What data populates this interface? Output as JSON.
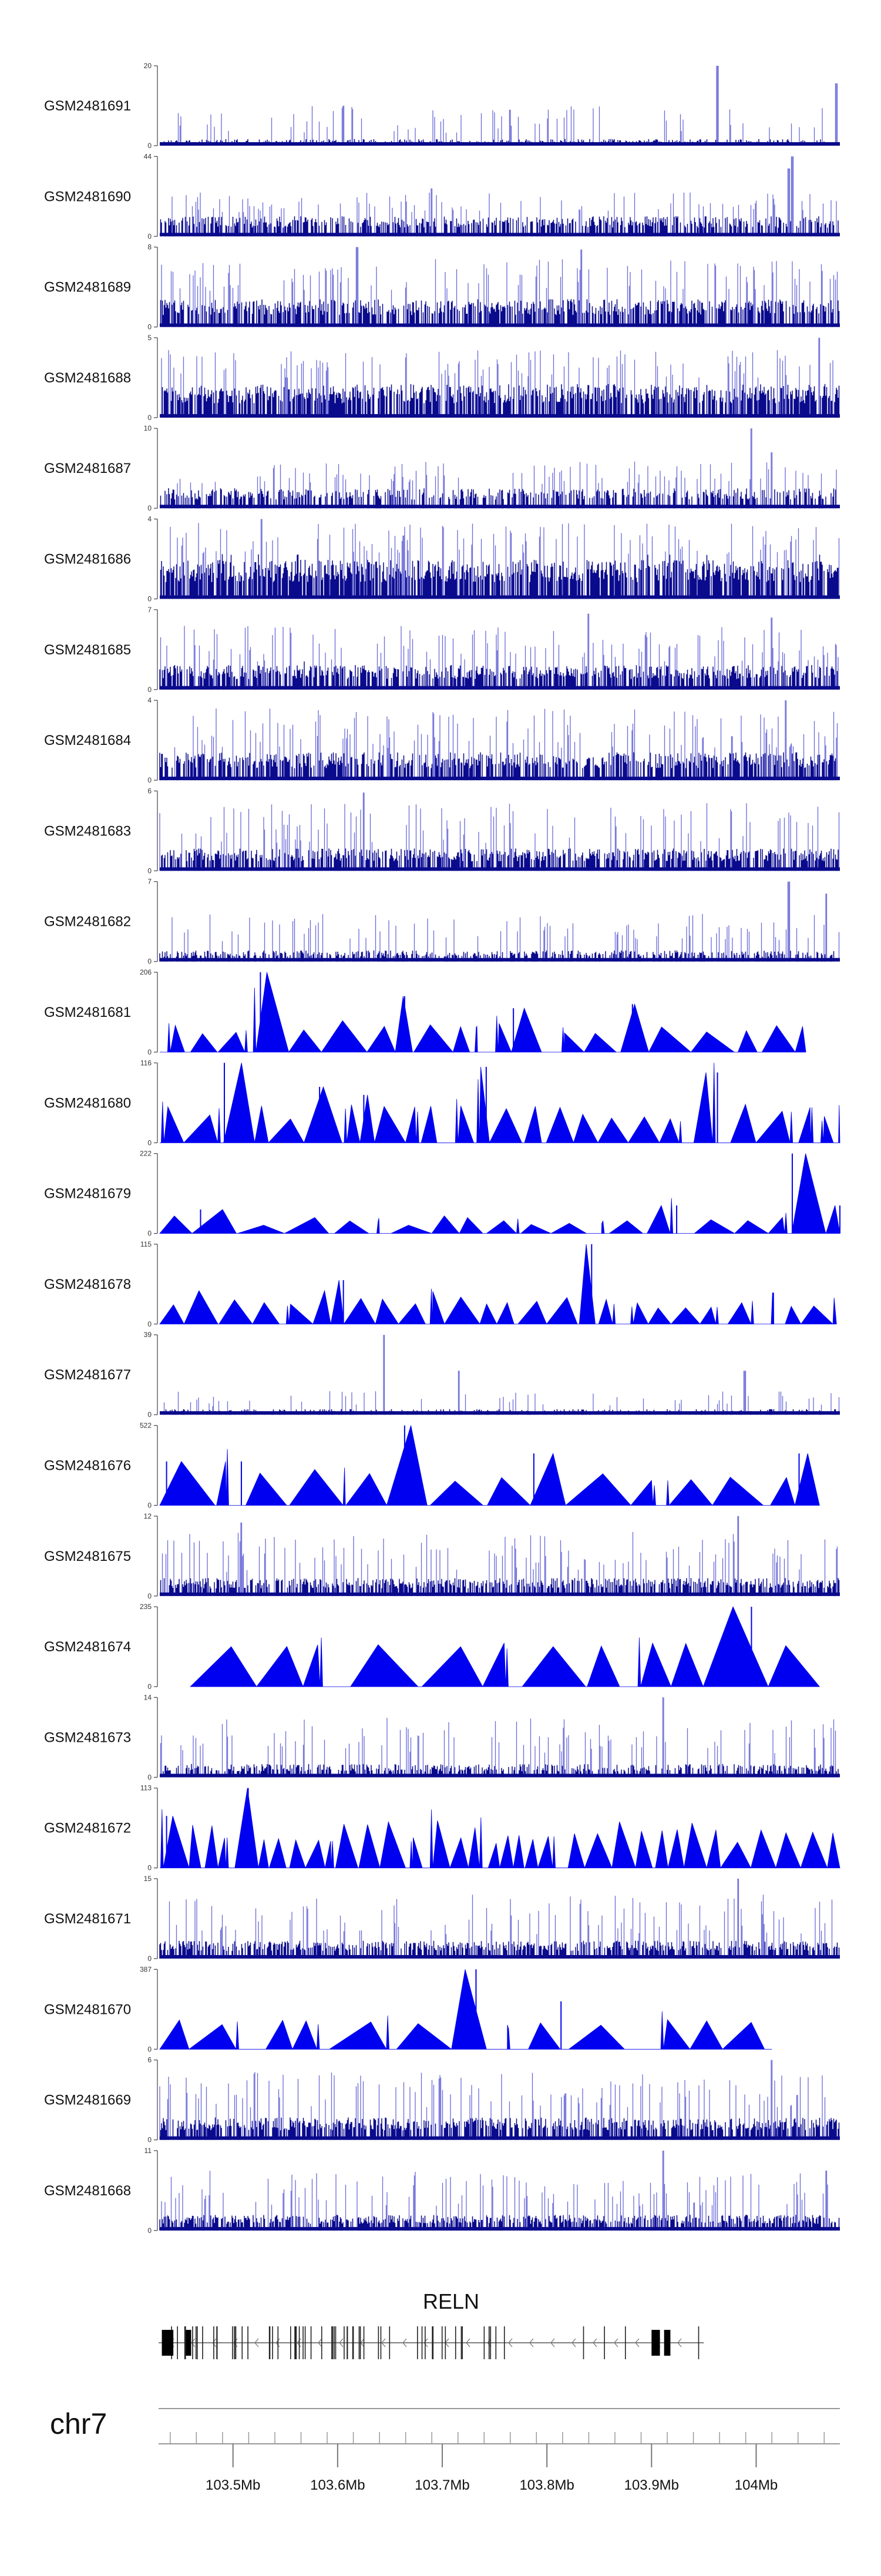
{
  "chart_data": {
    "type": "genome-browser",
    "chromosome": "chr7",
    "xrange_mb": [
      103.43,
      104.08
    ],
    "xtick_labels": [
      {
        "value": 103.5,
        "label": "103.5Mb"
      },
      {
        "value": 103.6,
        "label": "103.6Mb"
      },
      {
        "value": 103.7,
        "label": "103.7Mb"
      },
      {
        "value": 103.8,
        "label": "103.8Mb"
      },
      {
        "value": 103.9,
        "label": "103.9Mb"
      },
      {
        "value": 104.0,
        "label": "104Mb"
      }
    ],
    "gene": {
      "name": "RELN",
      "strand": "-",
      "start_mb": 103.43,
      "end_mb": 103.95
    },
    "tracks": [
      {
        "name": "GSM2481691",
        "ymax": 20,
        "ymax_label": "20",
        "style": "bar",
        "density": 0.45,
        "base": 0.06,
        "peak": [
          0.16,
          0.5
        ],
        "peaks": [
          {
            "x": 0.82,
            "h": 1.0
          },
          {
            "x": 0.995,
            "h": 0.78
          },
          {
            "x": 0.515,
            "h": 0.45
          },
          {
            "x": 0.27,
            "h": 0.5
          }
        ]
      },
      {
        "name": "GSM2481690",
        "ymax": 44,
        "ymax_label": "44",
        "style": "bar",
        "density": 0.65,
        "base": 0.18,
        "peak": [
          0.3,
          0.55
        ],
        "peaks": [
          {
            "x": 0.93,
            "h": 1.0
          },
          {
            "x": 0.925,
            "h": 0.85
          },
          {
            "x": 0.4,
            "h": 0.6
          }
        ]
      },
      {
        "name": "GSM2481689",
        "ymax": 8,
        "ymax_label": "8",
        "style": "bar",
        "density": 0.75,
        "base": 0.25,
        "peak": [
          0.45,
          0.85
        ],
        "peaks": [
          {
            "x": 0.29,
            "h": 1.0
          },
          {
            "x": 0.62,
            "h": 0.97
          }
        ]
      },
      {
        "name": "GSM2481688",
        "ymax": 5,
        "ymax_label": "5",
        "style": "bar",
        "density": 0.8,
        "base": 0.3,
        "peak": [
          0.5,
          0.85
        ],
        "peaks": [
          {
            "x": 0.97,
            "h": 1.0
          }
        ]
      },
      {
        "name": "GSM2481687",
        "ymax": 10,
        "ymax_label": "10",
        "style": "bar",
        "density": 0.6,
        "base": 0.18,
        "peak": [
          0.3,
          0.6
        ],
        "peaks": [
          {
            "x": 0.87,
            "h": 1.0
          },
          {
            "x": 0.9,
            "h": 0.7
          }
        ]
      },
      {
        "name": "GSM2481686",
        "ymax": 4,
        "ymax_label": "4",
        "style": "bar",
        "density": 0.85,
        "base": 0.35,
        "peak": [
          0.55,
          0.95
        ],
        "peaks": [
          {
            "x": 0.15,
            "h": 1.0
          }
        ]
      },
      {
        "name": "GSM2481685",
        "ymax": 7,
        "ymax_label": "7",
        "style": "bar",
        "density": 0.75,
        "base": 0.22,
        "peak": [
          0.35,
          0.8
        ],
        "peaks": [
          {
            "x": 0.63,
            "h": 0.95
          },
          {
            "x": 0.9,
            "h": 0.9
          }
        ]
      },
      {
        "name": "GSM2481684",
        "ymax": 4,
        "ymax_label": "4",
        "style": "bar",
        "density": 0.75,
        "base": 0.25,
        "peak": [
          0.4,
          0.9
        ],
        "peaks": [
          {
            "x": 0.92,
            "h": 1.0
          }
        ]
      },
      {
        "name": "GSM2481683",
        "ymax": 6,
        "ymax_label": "6",
        "style": "bar",
        "density": 0.75,
        "base": 0.2,
        "peak": [
          0.35,
          0.85
        ],
        "peaks": [
          {
            "x": 0.3,
            "h": 0.98
          }
        ]
      },
      {
        "name": "GSM2481682",
        "ymax": 7,
        "ymax_label": "7",
        "style": "bar",
        "density": 0.55,
        "base": 0.1,
        "peak": [
          0.25,
          0.6
        ],
        "peaks": [
          {
            "x": 0.925,
            "h": 1.0
          },
          {
            "x": 0.98,
            "h": 0.85
          }
        ]
      },
      {
        "name": "GSM2481681",
        "ymax": 206,
        "ymax_label": "206",
        "style": "tri",
        "lastx": 0.95,
        "triw": 0.045,
        "triH": [
          0.22,
          0.42
        ],
        "peaks": [
          {
            "x": 0.148,
            "h": 1.0
          },
          {
            "x": 0.36,
            "h": 0.7
          },
          {
            "x": 0.52,
            "h": 0.55
          },
          {
            "x": 0.695,
            "h": 0.6
          }
        ]
      },
      {
        "name": "GSM2481680",
        "ymax": 116,
        "ymax_label": "116",
        "style": "tri",
        "lastx": 1.0,
        "triw": 0.04,
        "triH": [
          0.28,
          0.5
        ],
        "peaks": [
          {
            "x": 0.095,
            "h": 1.0
          },
          {
            "x": 0.48,
            "h": 0.95
          },
          {
            "x": 0.82,
            "h": 0.88
          },
          {
            "x": 0.235,
            "h": 0.7
          },
          {
            "x": 0.3,
            "h": 0.6
          }
        ]
      },
      {
        "name": "GSM2481679",
        "ymax": 222,
        "ymax_label": "222",
        "style": "tri",
        "lastx": 1.0,
        "triw": 0.05,
        "triH": [
          0.1,
          0.22
        ],
        "peaks": [
          {
            "x": 0.93,
            "h": 1.0
          },
          {
            "x": 0.76,
            "h": 0.35
          },
          {
            "x": 0.06,
            "h": 0.3
          },
          {
            "x": 1.0,
            "h": 0.35
          }
        ]
      },
      {
        "name": "GSM2481678",
        "ymax": 115,
        "ymax_label": "115",
        "style": "tri",
        "lastx": 0.995,
        "triw": 0.035,
        "triH": [
          0.2,
          0.42
        ],
        "peaks": [
          {
            "x": 0.635,
            "h": 1.0
          },
          {
            "x": 0.27,
            "h": 0.55
          }
        ]
      },
      {
        "name": "GSM2481677",
        "ymax": 39,
        "ymax_label": "39",
        "style": "bar",
        "density": 0.35,
        "base": 0.05,
        "peak": [
          0.1,
          0.3
        ],
        "peaks": [
          {
            "x": 0.33,
            "h": 1.0
          },
          {
            "x": 0.44,
            "h": 0.55
          },
          {
            "x": 0.86,
            "h": 0.55
          }
        ]
      },
      {
        "name": "GSM2481676",
        "ymax": 522,
        "ymax_label": "522",
        "style": "tri",
        "lastx": 0.97,
        "triw": 0.07,
        "triH": [
          0.28,
          0.45
        ],
        "peaks": [
          {
            "x": 0.36,
            "h": 1.0
          },
          {
            "x": 0.55,
            "h": 0.65
          },
          {
            "x": 0.94,
            "h": 0.65
          },
          {
            "x": 0.01,
            "h": 0.55
          },
          {
            "x": 0.12,
            "h": 0.55
          }
        ]
      },
      {
        "name": "GSM2481675",
        "ymax": 12,
        "ymax_label": "12",
        "style": "bar",
        "density": 0.7,
        "base": 0.16,
        "peak": [
          0.3,
          0.8
        ],
        "peaks": [
          {
            "x": 0.85,
            "h": 1.0
          },
          {
            "x": 0.12,
            "h": 0.92
          }
        ]
      },
      {
        "name": "GSM2481674",
        "ymax": 235,
        "ymax_label": "235",
        "style": "tri",
        "lastx": 0.97,
        "triw": 0.075,
        "triH": [
          0.5,
          0.55
        ],
        "startx": 0.045,
        "peaks": [
          {
            "x": 0.87,
            "h": 1.0
          }
        ]
      },
      {
        "name": "GSM2481673",
        "ymax": 14,
        "ymax_label": "14",
        "style": "bar",
        "density": 0.6,
        "base": 0.12,
        "peak": [
          0.3,
          0.75
        ],
        "peaks": [
          {
            "x": 0.74,
            "h": 1.0
          }
        ]
      },
      {
        "name": "GSM2481672",
        "ymax": 113,
        "ymax_label": "113",
        "style": "tri",
        "lastx": 1.0,
        "triw": 0.03,
        "triH": [
          0.3,
          0.6
        ],
        "peaks": [
          {
            "x": 0.13,
            "h": 1.0
          },
          {
            "x": 0.01,
            "h": 0.65
          }
        ]
      },
      {
        "name": "GSM2481671",
        "ymax": 15,
        "ymax_label": "15",
        "style": "bar",
        "density": 0.7,
        "base": 0.16,
        "peak": [
          0.3,
          0.8
        ],
        "peaks": [
          {
            "x": 0.85,
            "h": 1.0
          }
        ]
      },
      {
        "name": "GSM2481670",
        "ymax": 387,
        "ymax_label": "387",
        "style": "tri",
        "lastx": 0.9,
        "triw": 0.075,
        "triH": [
          0.3,
          0.38
        ],
        "peaks": [
          {
            "x": 0.465,
            "h": 1.0
          },
          {
            "x": 0.59,
            "h": 0.6
          }
        ]
      },
      {
        "name": "GSM2481669",
        "ymax": 6,
        "ymax_label": "6",
        "style": "bar",
        "density": 0.75,
        "base": 0.2,
        "peak": [
          0.4,
          0.85
        ],
        "peaks": [
          {
            "x": 0.9,
            "h": 1.0
          }
        ]
      },
      {
        "name": "GSM2481668",
        "ymax": 11,
        "ymax_label": "11",
        "style": "bar",
        "density": 0.7,
        "base": 0.14,
        "peak": [
          0.3,
          0.75
        ],
        "peaks": [
          {
            "x": 0.74,
            "h": 1.0
          },
          {
            "x": 0.98,
            "h": 0.75
          }
        ]
      }
    ],
    "ymin_label": "0"
  }
}
